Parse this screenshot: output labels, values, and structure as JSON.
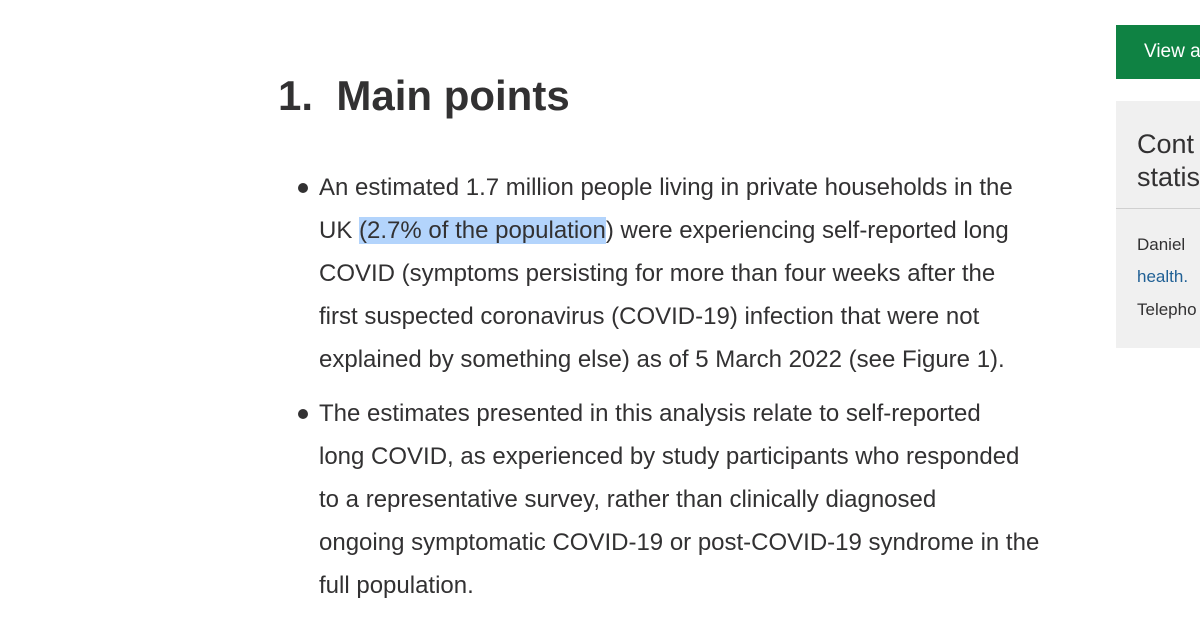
{
  "article": {
    "heading": "1.  Main points",
    "bullets": [
      {
        "lines": [
          [
            "An estimated 1.7 million people living in private households in the"
          ],
          [
            "UK ",
            "(2.7% of the population",
            ") were experiencing self-reported long"
          ],
          [
            "COVID (symptoms persisting for more than four weeks after the"
          ],
          [
            "first suspected coronavirus (COVID-19) infection that were not"
          ],
          [
            "explained by something else) as of 5 March 2022 (see Figure 1)."
          ]
        ]
      },
      {
        "lines": [
          [
            "The estimates presented in this analysis relate to self-reported"
          ],
          [
            "long COVID, as experienced by study participants who responded"
          ],
          [
            "to a representative survey, rather than clinically diagnosed"
          ],
          [
            "ongoing symptomatic COVID-19 or post-COVID-19 syndrome in the"
          ],
          [
            "full population."
          ]
        ]
      }
    ]
  },
  "sidebar": {
    "button": "View a",
    "contact_heading": [
      "Cont",
      "statis"
    ],
    "contact_lines": [
      "Daniel",
      "health.",
      "Telepho"
    ]
  }
}
